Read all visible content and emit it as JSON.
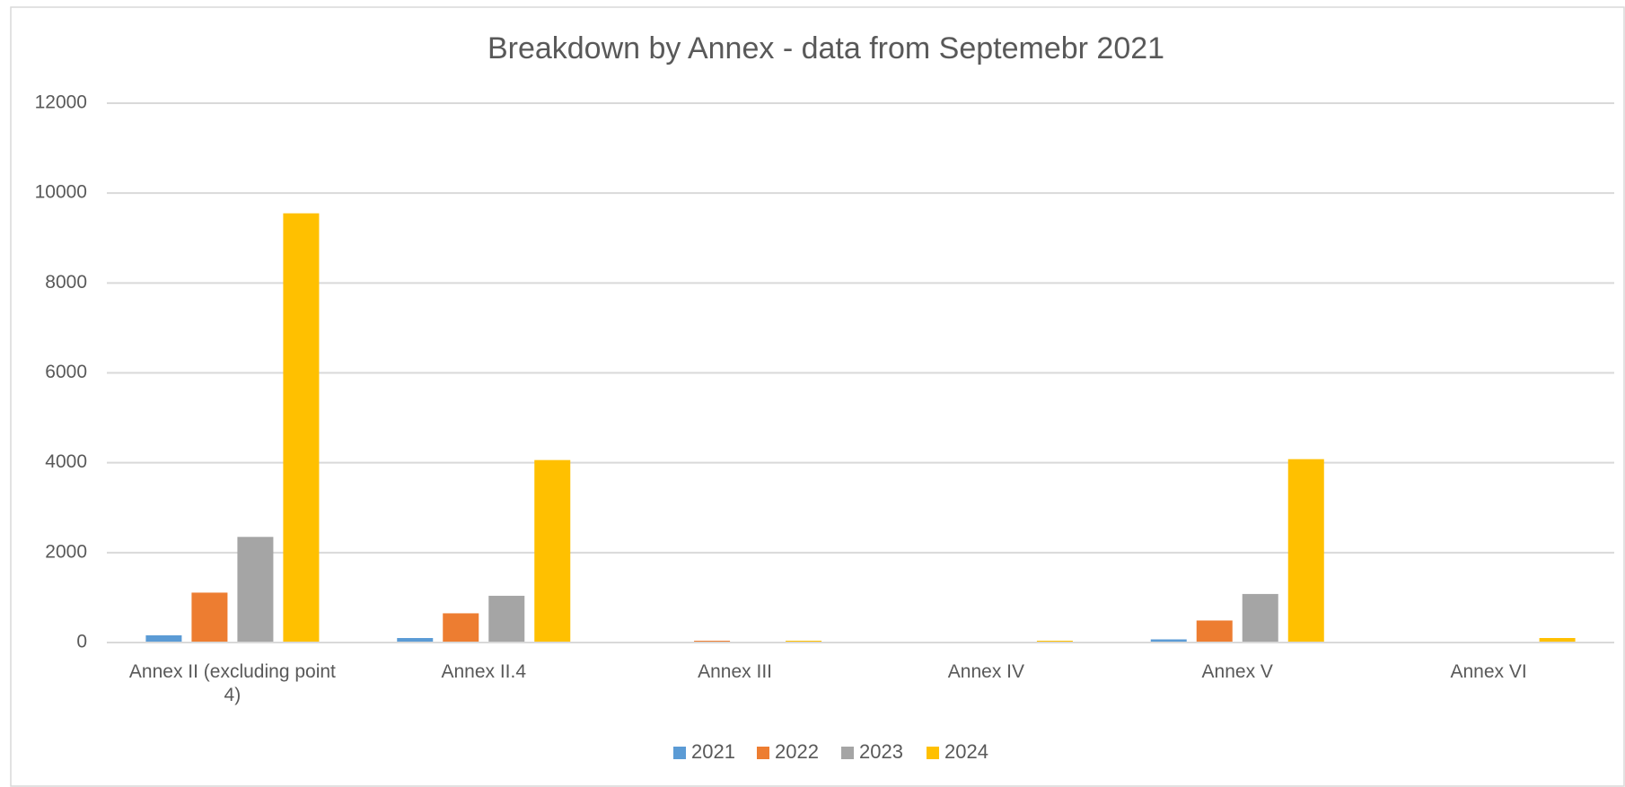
{
  "chart_data": {
    "type": "bar",
    "title": "Breakdown by Annex - data from Septemebr 2021",
    "categories": [
      "Annex II (excluding point 4)",
      "Annex II.4",
      "Annex III",
      "Annex IV",
      "Annex V",
      "Annex VI"
    ],
    "series": [
      {
        "name": "2021",
        "color": "#5b9bd5",
        "values": [
          160,
          100,
          0,
          0,
          70,
          0
        ]
      },
      {
        "name": "2022",
        "color": "#ed7d31",
        "values": [
          1110,
          650,
          40,
          0,
          490,
          0
        ]
      },
      {
        "name": "2023",
        "color": "#a5a5a5",
        "values": [
          2350,
          1040,
          0,
          0,
          1080,
          0
        ]
      },
      {
        "name": "2024",
        "color": "#ffc000",
        "values": [
          9550,
          4060,
          40,
          40,
          4080,
          100
        ]
      }
    ],
    "ylim": [
      0,
      12000
    ],
    "yticks": [
      0,
      2000,
      4000,
      6000,
      8000,
      10000,
      12000
    ],
    "grid": true,
    "legend": "bottom"
  }
}
